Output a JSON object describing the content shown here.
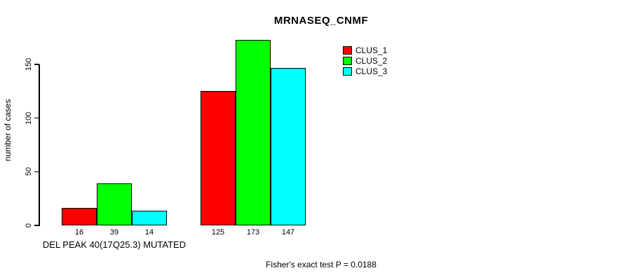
{
  "title": "MRNASEQ_CNMF",
  "y_axis": {
    "label": "number of cases"
  },
  "legend": {
    "items": [
      {
        "label": "CLUS_1",
        "color": "#ff0000"
      },
      {
        "label": "CLUS_2",
        "color": "#00ff00"
      },
      {
        "label": "CLUS_3",
        "color": "#00ffff"
      }
    ]
  },
  "footer": {
    "text": "Fisher's exact test P = 0.0188"
  },
  "chart_data": {
    "type": "bar",
    "title": "MRNASEQ_CNMF",
    "ylabel": "number of cases",
    "xlabel": "",
    "ylim": [
      0,
      175
    ],
    "yticks": [
      0,
      50,
      100,
      150
    ],
    "grid": false,
    "legend_position": "top-right",
    "bar_value_labels_shown": true,
    "categories": [
      "DEL PEAK 40(17Q25.3) MUTATED",
      ""
    ],
    "series": [
      {
        "name": "CLUS_1",
        "color": "#ff0000",
        "values": [
          16,
          125
        ]
      },
      {
        "name": "CLUS_2",
        "color": "#00ff00",
        "values": [
          39,
          173
        ]
      },
      {
        "name": "CLUS_3",
        "color": "#00ffff",
        "values": [
          14,
          147
        ]
      }
    ],
    "annotation": "Fisher's exact test P = 0.0188"
  }
}
